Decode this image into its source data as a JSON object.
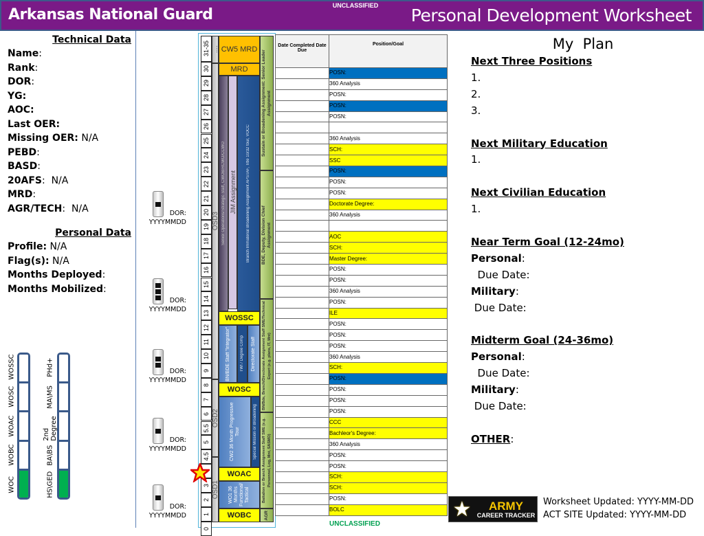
{
  "header": {
    "left_title": "Arkansas National Guard",
    "right_title": "Personal Development Worksheet",
    "classification": "UNCLASSIFIED",
    "color": "#7a1a87"
  },
  "technical": {
    "heading": "Technical Data",
    "fields": [
      {
        "label": "Name",
        "sep": ":",
        "value": ""
      },
      {
        "label": "Rank",
        "sep": ":",
        "value": ""
      },
      {
        "label": "DOR",
        "sep": ":",
        "value": ""
      },
      {
        "label": "YG:",
        "sep": "",
        "value": ""
      },
      {
        "label": "AOC:",
        "sep": "",
        "value": ""
      },
      {
        "label": "Last OER:",
        "sep": "",
        "value": ""
      },
      {
        "label": "Missing OER:",
        "sep": "",
        "value": " N/A"
      },
      {
        "label": "PEBD",
        "sep": ":",
        "value": ""
      },
      {
        "label": "BASD",
        "sep": ":",
        "value": ""
      },
      {
        "label": "20AFS",
        "sep": ":",
        "value": "  N/A"
      },
      {
        "label": "MRD",
        "sep": ":",
        "value": ""
      },
      {
        "label": "AGR/TECH",
        "sep": ":",
        "value": "  N/A"
      }
    ]
  },
  "personal": {
    "heading": "Personal Data",
    "fields": [
      {
        "label": "Profile:",
        "sep": "",
        "value": " N/A"
      },
      {
        "label": "Flag(s):",
        "sep": "",
        "value": " N/A"
      },
      {
        "label": "Months Deployed",
        "sep": ":",
        "value": ""
      },
      {
        "label": "Months Mobilized",
        "sep": ":",
        "value": ""
      }
    ]
  },
  "progress_bars": {
    "military": {
      "labels": [
        "WOC",
        "WOBC",
        "WOAC",
        "WOSC",
        "WOSSC"
      ],
      "completed": 1
    },
    "civilian": {
      "labels": [
        "HS\\GED",
        "BA\\BS",
        "2nd Degree",
        "MA\\MS",
        "PHd+"
      ],
      "completed": 1
    },
    "fill_color": "#00b050"
  },
  "rank_insignia": [
    {
      "label": "DOR:",
      "date": "YYYYMMDD"
    },
    {
      "label": "DOR:",
      "date": "YYYYMMDD"
    },
    {
      "label": "DOR:",
      "date": "YYYYMMDD"
    },
    {
      "label": "DOR:",
      "date": "YYYYMMDD"
    },
    {
      "label": "DOR:",
      "date": "YYYYMMDD"
    }
  ],
  "timeline": {
    "years": [
      "31-35",
      "30",
      "29",
      "28",
      "27",
      "26",
      "25",
      "24",
      "23",
      "22",
      "21",
      "20",
      "19",
      "18",
      "17",
      "16",
      "15",
      "14",
      "13",
      "12",
      "11",
      "10",
      "9",
      "8",
      "7",
      "6",
      "5.5",
      "5",
      "4.5",
      "4",
      "3",
      "2",
      "1",
      "0"
    ],
    "blocks": {
      "cw5_mrd": "CW5 MRD",
      "mrd": "MRD",
      "osd3": "OSD3",
      "osd2": "OSD2",
      "osd1": "OSD1",
      "dots": "....",
      "senior_ops": "Senior Operations/Strategic Staff, CWOB/RCWO/CCWO",
      "jim": "JIM Assignment",
      "branch_immaterial": "Branch Immaterial Broadening Assignment APSTAF, Title 10/32 tour, VOCC",
      "wossc": "WOSSC",
      "bn_bde": "BN/BDE Staff \"Integrator\"",
      "tw": "TWI / Degree Comp",
      "directorate": "Directorate Staff",
      "wosc": "WOSC",
      "cw2": "CW2 36 Month Progressive Tour",
      "special": "Special Mission or Broadening",
      "woac": "WOAC",
      "wo1": "WO1 36 Months Functional/ Tactical",
      "wobc": "WOBC",
      "g_sustain": "Sustain or Broadening Assignment: Senior Leader Assignment",
      "g_bde": "BDE, Deputy, Division Chief Assignment",
      "g_bnbde": "BN/Bde, Branch/Directorate Assignment Staff SME/Technical Expert (e.g. plans, IT, Mnt)",
      "g_battalion": "Battalion or Branch Assignment Staff SME (e.g. Personnel, Log, Mnt, SASMO)",
      "g_agr": "AGR"
    },
    "current_marker": "star"
  },
  "table": {
    "headers": [
      "Date Completed Date Due",
      "Position/Goal"
    ],
    "highlight_colors": {
      "blue": "#0070c0",
      "yellow": "#ffff00"
    },
    "rows": [
      {
        "date": "",
        "goal": "POSN:",
        "color": "blue"
      },
      {
        "date": "",
        "goal": "360 Analysis",
        "color": ""
      },
      {
        "date": "",
        "goal": "POSN:",
        "color": ""
      },
      {
        "date": "",
        "goal": "POSN:",
        "color": "blue"
      },
      {
        "date": "",
        "goal": "POSN:",
        "color": ""
      },
      {
        "date": "",
        "goal": "",
        "color": ""
      },
      {
        "date": "",
        "goal": "360 Analysis",
        "color": ""
      },
      {
        "date": "",
        "goal": "SCH:",
        "color": "yellow"
      },
      {
        "date": "",
        "goal": "SSC",
        "color": "yellow"
      },
      {
        "date": "",
        "goal": "POSN:",
        "color": "blue"
      },
      {
        "date": "",
        "goal": "POSN:",
        "color": ""
      },
      {
        "date": "",
        "goal": "POSN:",
        "color": ""
      },
      {
        "date": "",
        "goal": "Doctorate Degree:",
        "color": "yellow"
      },
      {
        "date": "",
        "goal": "360 Analysis",
        "color": ""
      },
      {
        "date": "",
        "goal": "",
        "color": ""
      },
      {
        "date": "",
        "goal": "AOC",
        "color": "yellow"
      },
      {
        "date": "",
        "goal": "SCH:",
        "color": "yellow"
      },
      {
        "date": "",
        "goal": "Master Degree:",
        "color": "yellow"
      },
      {
        "date": "",
        "goal": "POSN:",
        "color": ""
      },
      {
        "date": "",
        "goal": "POSN:",
        "color": ""
      },
      {
        "date": "",
        "goal": "360 Analysis",
        "color": ""
      },
      {
        "date": "",
        "goal": "POSN:",
        "color": ""
      },
      {
        "date": "",
        "goal": "ILE",
        "color": "yellow"
      },
      {
        "date": "",
        "goal": "POSN:",
        "color": ""
      },
      {
        "date": "",
        "goal": "POSN:",
        "color": ""
      },
      {
        "date": "",
        "goal": "POSN:",
        "color": ""
      },
      {
        "date": "",
        "goal": "360 Analysis",
        "color": ""
      },
      {
        "date": "",
        "goal": "SCH:",
        "color": "yellow"
      },
      {
        "date": "",
        "goal": "POSN:",
        "color": "blue"
      },
      {
        "date": "",
        "goal": "POSN:",
        "color": ""
      },
      {
        "date": "",
        "goal": "POSN:",
        "color": ""
      },
      {
        "date": "",
        "goal": "POSN:",
        "color": ""
      },
      {
        "date": "",
        "goal": "CCC",
        "color": "yellow"
      },
      {
        "date": "",
        "goal": "Bachleor's Degree:",
        "color": "yellow"
      },
      {
        "date": "",
        "goal": "360 Analysis",
        "color": ""
      },
      {
        "date": "",
        "goal": "POSN:",
        "color": ""
      },
      {
        "date": "",
        "goal": "POSN:",
        "color": ""
      },
      {
        "date": "",
        "goal": "SCH:",
        "color": "yellow"
      },
      {
        "date": "",
        "goal": "SCH:",
        "color": "yellow"
      },
      {
        "date": "",
        "goal": "POSN:",
        "color": ""
      },
      {
        "date": "",
        "goal": "BOLC",
        "color": "yellow"
      }
    ]
  },
  "bottom_classification": "UNCLASSIFIED",
  "plan": {
    "title": "My  Plan",
    "lines": [
      {
        "text": "Next Three Positions",
        "heading": true
      },
      {
        "text": "1."
      },
      {
        "text": "2."
      },
      {
        "text": "3."
      },
      {
        "text": ""
      },
      {
        "text": "Next Military Education",
        "heading": true
      },
      {
        "text": "1."
      },
      {
        "text": ""
      },
      {
        "text": "Next Civilian Education",
        "heading": true
      },
      {
        "text": "1."
      },
      {
        "text": ""
      },
      {
        "text": "Near Term Goal (12-24mo)",
        "heading": true
      },
      {
        "text": "Personal",
        "bold": true,
        "suffix": ":"
      },
      {
        "text": "  Due Date:"
      },
      {
        "text": "Military",
        "bold": true,
        "suffix": ":"
      },
      {
        "text": " Due Date:"
      },
      {
        "text": ""
      },
      {
        "text": "Midterm Goal (24-36mo)",
        "heading": true
      },
      {
        "text": "Personal",
        "bold": true,
        "suffix": ":"
      },
      {
        "text": "  Due Date:"
      },
      {
        "text": "Military",
        "bold": true,
        "suffix": ":"
      },
      {
        "text": " Due Date:"
      },
      {
        "text": ""
      },
      {
        "text": "OTHER",
        "heading": true,
        "suffix": ":"
      }
    ]
  },
  "logo": {
    "line1": "ARMY",
    "line2": "CAREER TRACKER"
  },
  "updates": {
    "worksheet": "Worksheet Updated: YYYY-MM-DD",
    "act_site": "ACT SITE Updated: YYYY-MM-DD"
  }
}
